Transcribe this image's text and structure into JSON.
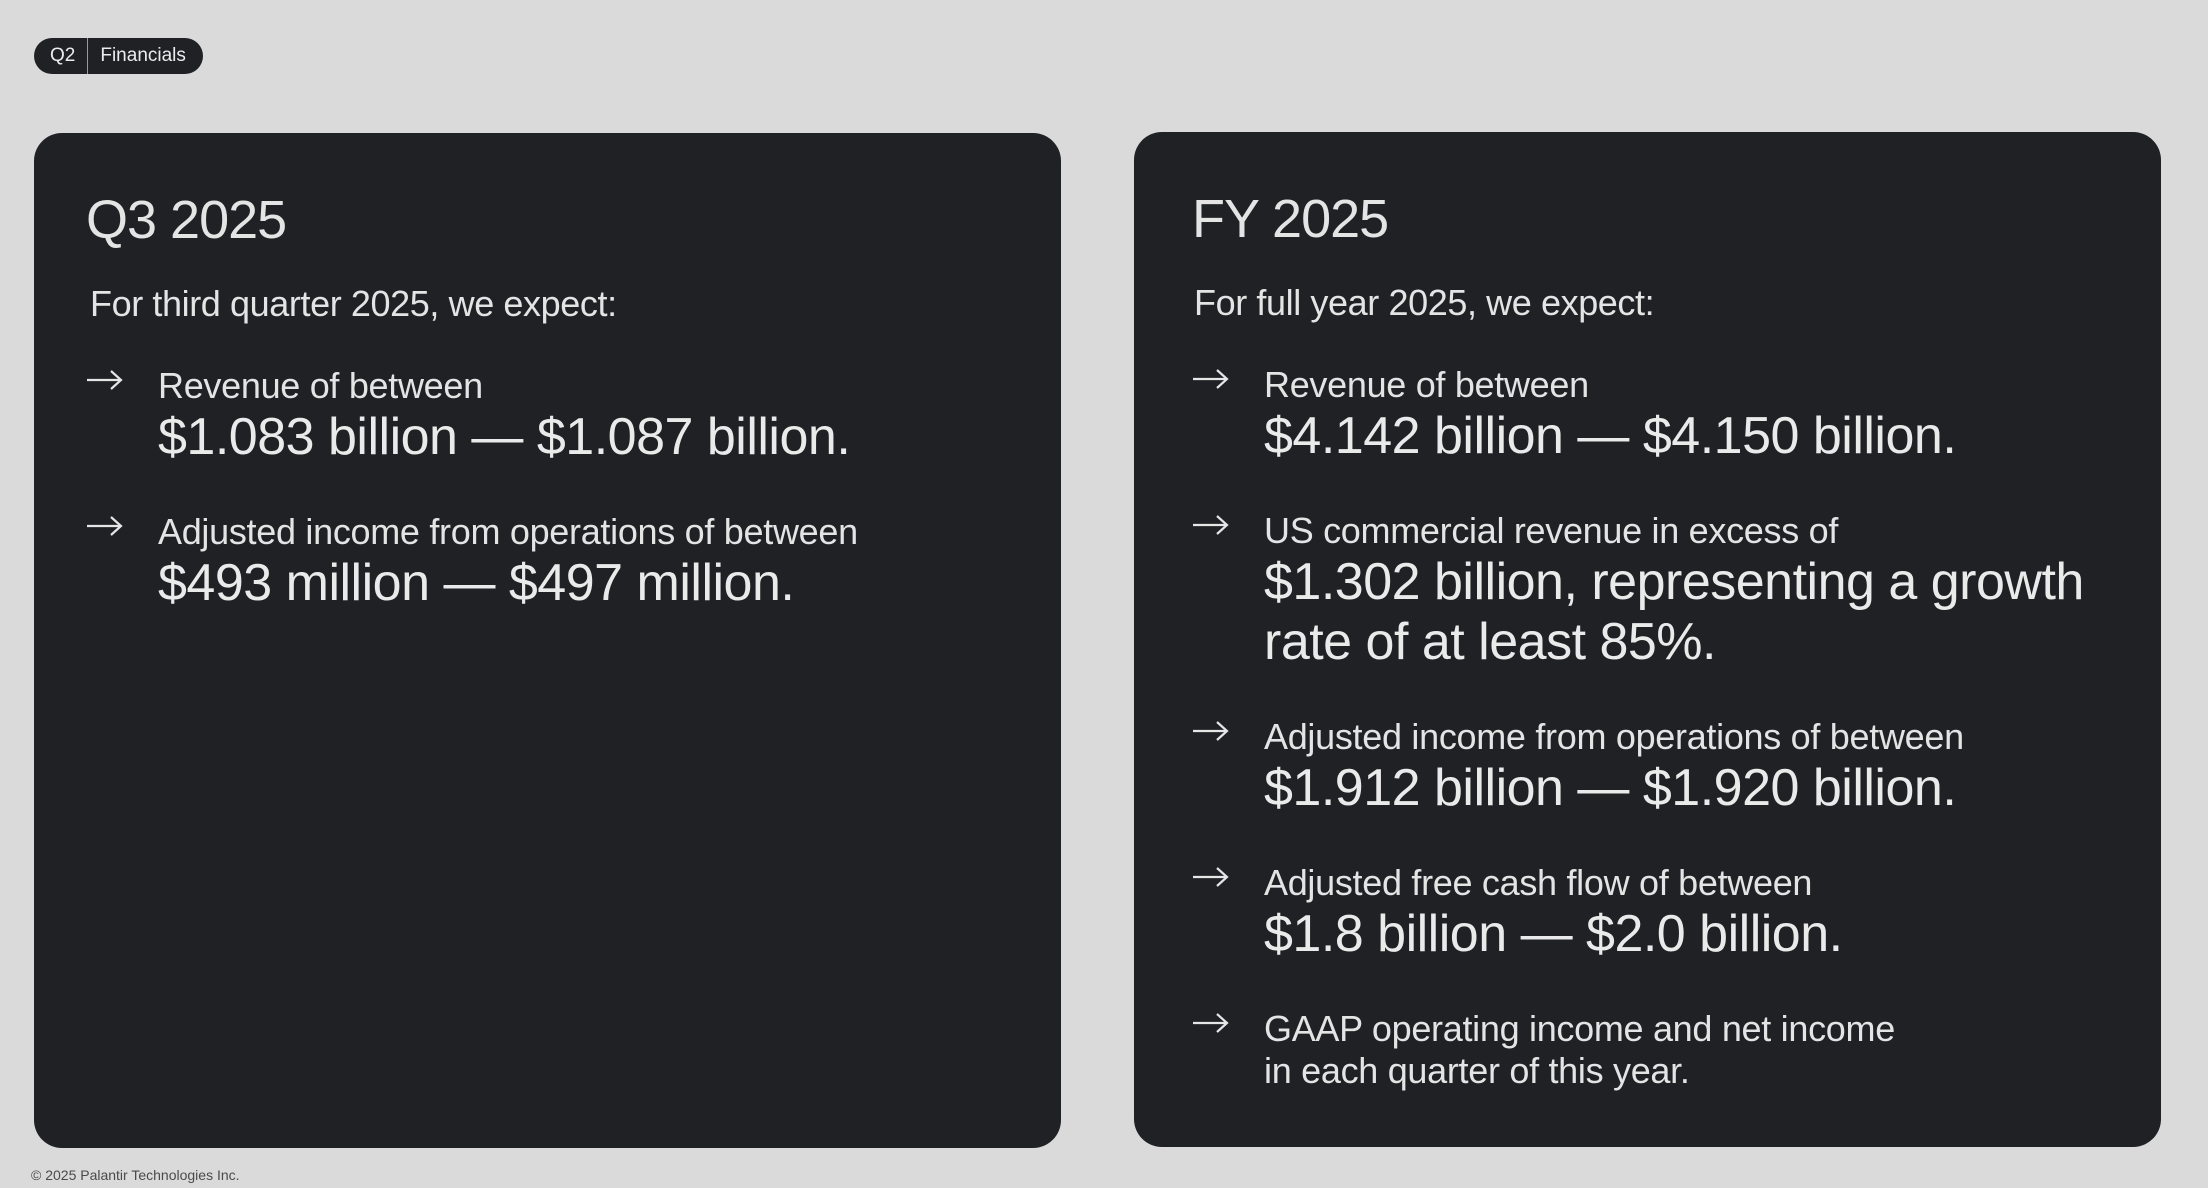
{
  "tag": {
    "quarter": "Q2",
    "section": "Financials"
  },
  "q3": {
    "title": "Q3 2025",
    "intro": "For third quarter 2025, we expect:",
    "bullets": [
      {
        "lead": "Revenue of between",
        "value": "$1.083 billion — $1.087 billion."
      },
      {
        "lead": "Adjusted income from operations of between",
        "value": "$493 million — $497 million."
      }
    ]
  },
  "fy": {
    "title": "FY 2025",
    "intro": "For full year 2025, we expect:",
    "bullets": [
      {
        "lead": "Revenue of between",
        "value": "$4.142 billion — $4.150 billion."
      },
      {
        "lead": "US commercial revenue in excess of",
        "value": "$1.302 billion, representing a growth rate of at least 85%."
      },
      {
        "lead": "Adjusted income from operations of between",
        "value": "$1.912 billion — $1.920 billion."
      },
      {
        "lead": "Adjusted free cash flow of between",
        "value": "$1.8 billion — $2.0 billion."
      },
      {
        "lead": "GAAP operating income and net income",
        "value": "in each quarter of this year."
      }
    ]
  },
  "footer": "© 2025 Palantir Technologies Inc.",
  "icons": {
    "bullet": "arrow-right-icon"
  },
  "colors": {
    "background": "#dadada",
    "card": "#1f2124",
    "text": "#e6e6e6"
  }
}
